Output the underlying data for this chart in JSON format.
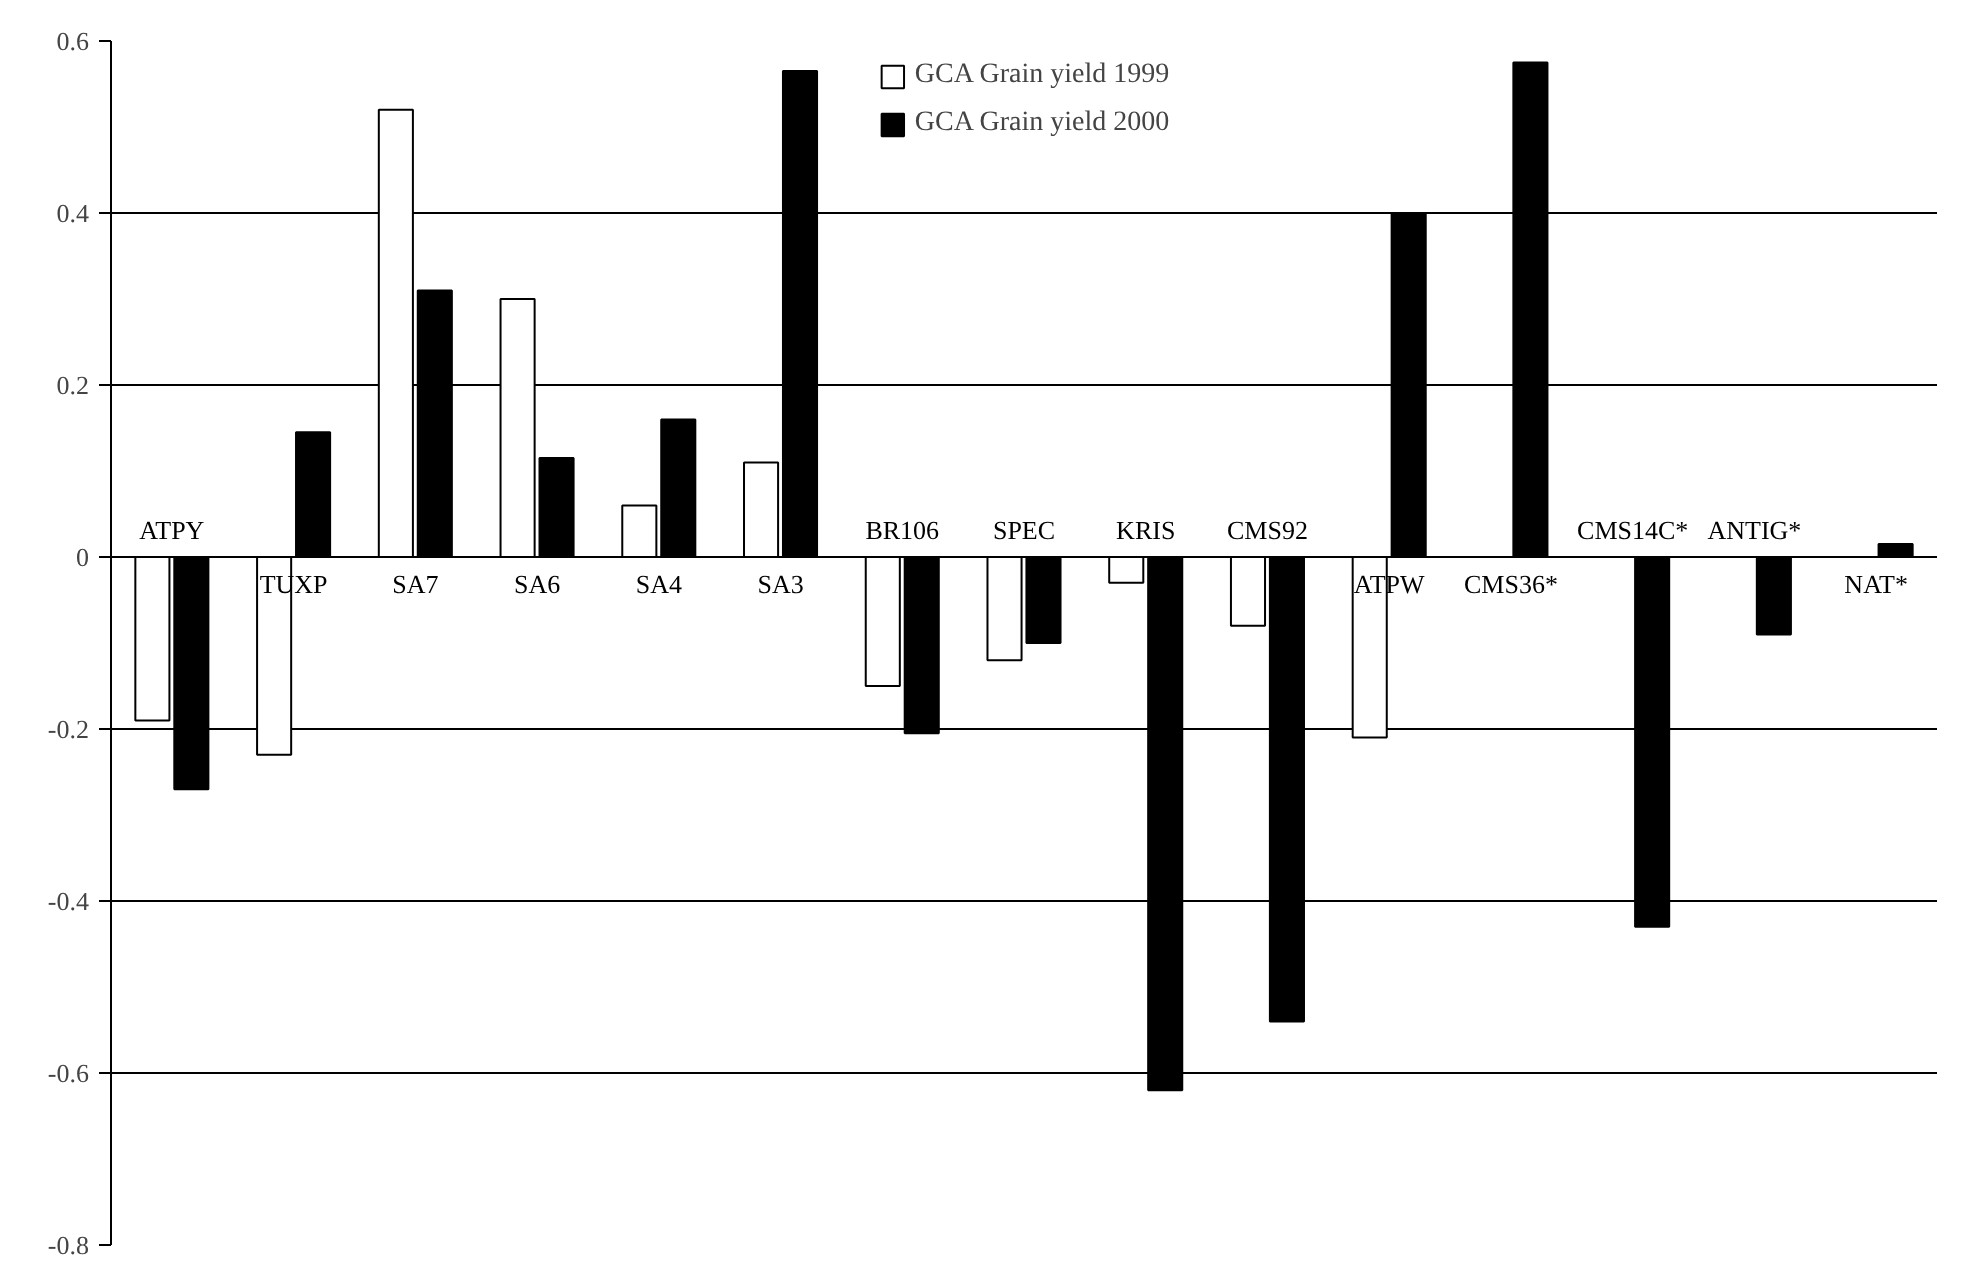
{
  "chart_data": {
    "type": "bar",
    "categories": [
      "ATPY",
      "TUXP",
      "SA7",
      "SA6",
      "SA4",
      "SA3",
      "BR106",
      "SPEC",
      "KRIS",
      "CMS92",
      "ATPW",
      "CMS36*",
      "CMS14C*",
      "ANTIG*",
      "NAT*"
    ],
    "series": [
      {
        "name": "GCA Grain yield 1999",
        "color": "#ffffff",
        "values": [
          -0.19,
          -0.23,
          0.52,
          0.3,
          0.06,
          0.11,
          -0.15,
          -0.12,
          -0.03,
          -0.08,
          -0.21,
          null,
          null,
          null,
          null
        ]
      },
      {
        "name": "GCA Grain yield 2000",
        "color": "#000000",
        "values": [
          -0.27,
          0.145,
          0.31,
          0.115,
          0.16,
          0.565,
          -0.205,
          -0.1,
          -0.62,
          -0.54,
          0.4,
          0.575,
          -0.43,
          -0.09,
          0.015
        ]
      }
    ],
    "ylim": [
      -0.8,
      0.6
    ],
    "yticks": [
      -0.8,
      -0.6,
      -0.4,
      -0.2,
      0,
      0.2,
      0.4,
      0.6
    ],
    "grid": "y",
    "legend": "top"
  }
}
